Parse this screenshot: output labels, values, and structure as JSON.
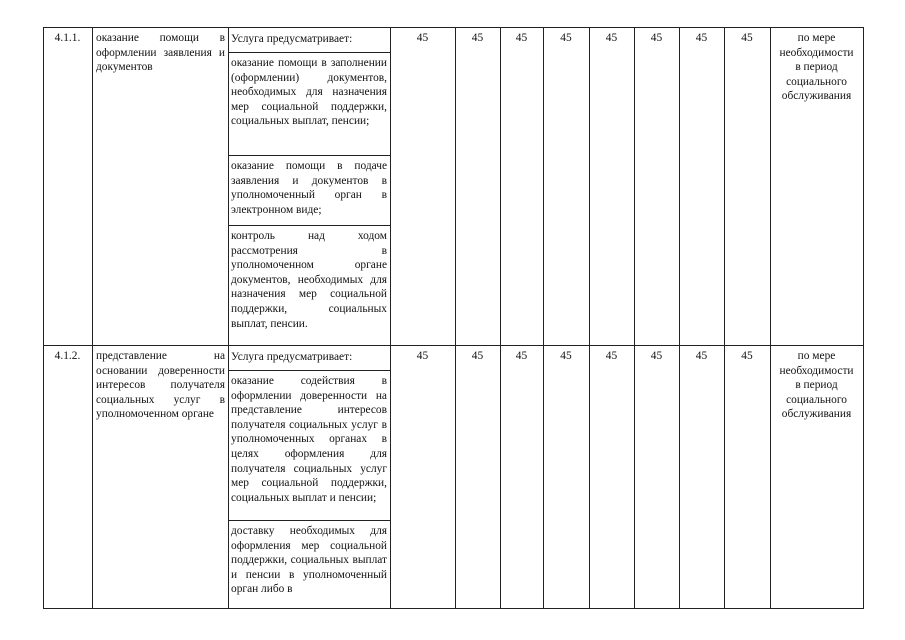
{
  "rows": [
    {
      "number": "4.1.1.",
      "name": "оказание помощи в оформлении заявления и документов",
      "service_header": "Услуга предусматривает:",
      "service_items": [
        "оказание помощи в заполнении (оформлении) документов, необходимых для назначения мер социальной поддержки, социальных выплат, пенсии;",
        "оказание помощи в подаче заявления и документов в уполномоченный орган в электронном виде;",
        "контроль над ходом рассмотрения в уполномоченном органе документов, необходимых для назначения мер социальной поддержки, социальных выплат, пенсии."
      ],
      "values": [
        "45",
        "45",
        "45",
        "45",
        "45",
        "45",
        "45",
        "45"
      ],
      "frequency": "по мере необходимости в период социального обслуживания"
    },
    {
      "number": "4.1.2.",
      "name": "представление на основании доверенности интересов получателя социальных услуг в уполномоченном органе",
      "service_header": "Услуга предусматривает:",
      "service_items": [
        "оказание содействия в оформлении доверенности на представление интересов получателя социальных услуг в уполномоченных органах в целях оформления для получателя социальных услуг мер социальной поддержки, социальных выплат и пенсии;",
        "доставку необходимых для оформления мер социальной поддержки, социальных выплат и пенсии в уполномоченный орган либо в"
      ],
      "values": [
        "45",
        "45",
        "45",
        "45",
        "45",
        "45",
        "45",
        "45"
      ],
      "frequency": "по мере необходимости в период социального обслуживания"
    }
  ]
}
